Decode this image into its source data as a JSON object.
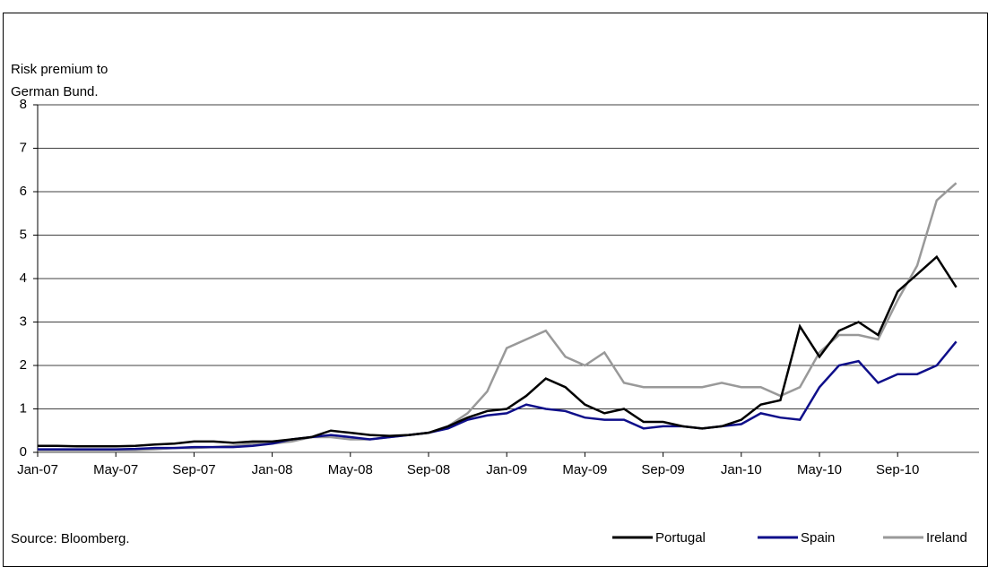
{
  "chart_data": {
    "type": "line",
    "ylabel": [
      "Risk premium to",
      "German Bund."
    ],
    "source": "Source: Bloomberg.",
    "categories": [
      "Jan-07",
      null,
      null,
      null,
      "May-07",
      null,
      null,
      null,
      "Sep-07",
      null,
      null,
      null,
      "Jan-08",
      null,
      null,
      null,
      "May-08",
      null,
      null,
      null,
      "Sep-08",
      null,
      null,
      null,
      "Jan-09",
      null,
      null,
      null,
      "May-09",
      null,
      null,
      null,
      "Sep-09",
      null,
      null,
      null,
      "Jan-10",
      null,
      null,
      null,
      "May-10",
      null,
      null,
      null,
      "Sep-10",
      null,
      null,
      null
    ],
    "series": [
      {
        "name": "Portugal",
        "color": "#000000",
        "values": [
          0.15,
          0.15,
          0.14,
          0.14,
          0.14,
          0.15,
          0.18,
          0.2,
          0.25,
          0.25,
          0.22,
          0.25,
          0.25,
          0.3,
          0.35,
          0.5,
          0.45,
          0.4,
          0.38,
          0.4,
          0.45,
          0.6,
          0.8,
          0.95,
          1.0,
          1.3,
          1.7,
          1.5,
          1.1,
          0.9,
          1.0,
          0.7,
          0.7,
          0.6,
          0.55,
          0.6,
          0.75,
          1.1,
          1.2,
          2.9,
          2.2,
          2.8,
          3.0,
          2.7,
          3.7,
          4.1,
          4.5,
          3.8
        ]
      },
      {
        "name": "Spain",
        "color": "#0f0f8a",
        "values": [
          0.07,
          0.07,
          0.07,
          0.07,
          0.07,
          0.08,
          0.1,
          0.1,
          0.12,
          0.12,
          0.12,
          0.15,
          0.2,
          0.3,
          0.35,
          0.4,
          0.35,
          0.3,
          0.35,
          0.4,
          0.45,
          0.55,
          0.75,
          0.85,
          0.9,
          1.1,
          1.0,
          0.95,
          0.8,
          0.75,
          0.75,
          0.55,
          0.6,
          0.6,
          0.55,
          0.6,
          0.65,
          0.9,
          0.8,
          0.75,
          1.5,
          2.0,
          2.1,
          1.6,
          1.8,
          1.8,
          2.0,
          2.55
        ]
      },
      {
        "name": "Ireland",
        "color": "#999999",
        "values": [
          0.05,
          0.05,
          0.05,
          0.05,
          0.05,
          0.05,
          0.07,
          0.1,
          0.1,
          0.12,
          0.15,
          0.2,
          0.2,
          0.25,
          0.35,
          0.35,
          0.3,
          0.3,
          0.35,
          0.4,
          0.45,
          0.6,
          0.9,
          1.4,
          2.4,
          2.6,
          2.8,
          2.2,
          2.0,
          2.3,
          1.6,
          1.5,
          1.5,
          1.5,
          1.5,
          1.6,
          1.5,
          1.5,
          1.3,
          1.5,
          2.3,
          2.7,
          2.7,
          2.6,
          3.5,
          4.3,
          5.8,
          6.2
        ]
      }
    ],
    "ylim": [
      0,
      8
    ],
    "yticks": [
      0,
      1,
      2,
      3,
      4,
      5,
      6,
      7,
      8
    ],
    "grid": true,
    "legend": "bottom-right"
  }
}
